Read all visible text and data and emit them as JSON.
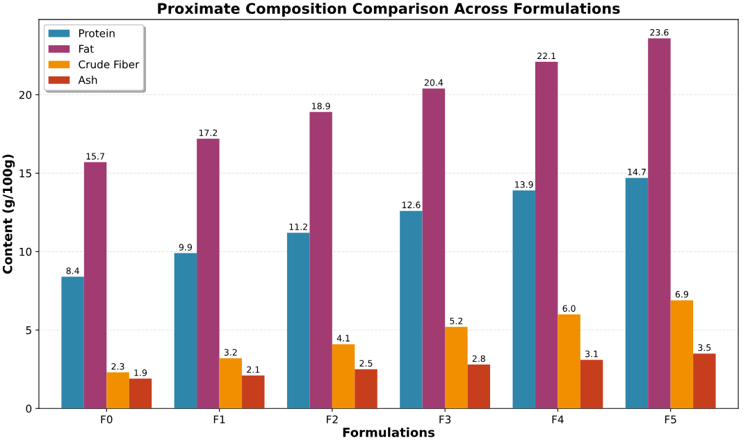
{
  "chart_data": {
    "type": "bar",
    "title": "Proximate Composition Comparison Across Formulations",
    "xlabel": "Formulations",
    "ylabel": "Content (g/100g)",
    "categories": [
      "F0",
      "F1",
      "F2",
      "F3",
      "F4",
      "F5"
    ],
    "series": [
      {
        "name": "Protein",
        "color": "#2e86ab",
        "values": [
          8.4,
          9.9,
          11.2,
          12.6,
          13.9,
          14.7
        ],
        "value_labels": [
          "8.4",
          "9.9",
          "11.2",
          "12.6",
          "13.9",
          "14.7"
        ]
      },
      {
        "name": "Fat",
        "color": "#a23b72",
        "values": [
          15.7,
          17.2,
          18.9,
          20.4,
          22.1,
          23.6
        ],
        "value_labels": [
          "15.7",
          "17.2",
          "18.9",
          "20.4",
          "22.1",
          "23.6"
        ]
      },
      {
        "name": "Crude Fiber",
        "color": "#f18f01",
        "values": [
          2.3,
          3.2,
          4.1,
          5.2,
          6.0,
          6.9
        ],
        "value_labels": [
          "2.3",
          "3.2",
          "4.1",
          "5.2",
          "6.0",
          "6.9"
        ]
      },
      {
        "name": "Ash",
        "color": "#c73e1d",
        "values": [
          1.9,
          2.1,
          2.5,
          2.8,
          3.1,
          3.5
        ],
        "value_labels": [
          "1.9",
          "2.1",
          "2.5",
          "2.8",
          "3.1",
          "3.5"
        ]
      }
    ],
    "ylim": [
      0,
      24.8
    ],
    "yticks": [
      0,
      5,
      10,
      15,
      20
    ],
    "grid": "y",
    "legend": "top left"
  }
}
